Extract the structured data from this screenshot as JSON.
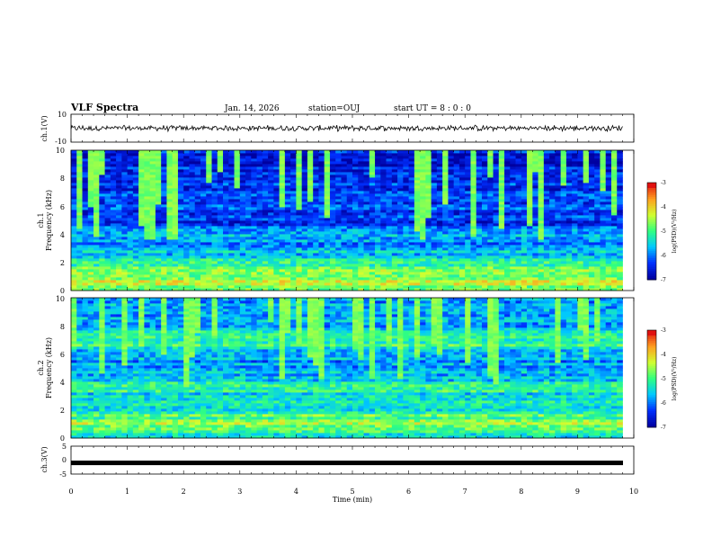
{
  "header": {
    "title": "VLF Spectra",
    "date": "Jan. 14, 2026",
    "station": "station=OUJ",
    "start": "start  UT =   8 : 0  : 0"
  },
  "chart_data": [
    {
      "type": "line",
      "panel": "ch1-waveform",
      "ylabel": "ch.1(V)",
      "ylim": [
        -10,
        10
      ],
      "yticks": [
        "10",
        "-10"
      ],
      "xlim": [
        0,
        10
      ],
      "description_values": {
        "baseline_mean": 0,
        "noise_amplitude": 1.5
      }
    },
    {
      "type": "heatmap",
      "panel": "ch1-spectrogram",
      "ylabel_top": "ch.1",
      "ylabel": "Frequency  (kHz)",
      "ylim": [
        0,
        10
      ],
      "yticks": [
        "0",
        "2",
        "4",
        "6",
        "8",
        "10"
      ],
      "xlim": [
        0,
        10
      ],
      "data_end_min": 9.8,
      "colorbar": {
        "label": "log(PSD)(V²/Hz)",
        "range": [
          -7,
          -3
        ],
        "ticks": [
          "-3",
          "-4",
          "-5",
          "-6",
          "-7"
        ]
      },
      "level_profile_kHz": [
        [
          0,
          -5.2
        ],
        [
          0.5,
          -4.2
        ],
        [
          1.0,
          -4.6
        ],
        [
          1.5,
          -4.4
        ],
        [
          2.0,
          -5.3
        ],
        [
          3.0,
          -5.8
        ],
        [
          4.0,
          -5.9
        ],
        [
          5.0,
          -6.4
        ],
        [
          6.0,
          -6.3
        ],
        [
          7.0,
          -6.4
        ],
        [
          8.0,
          -6.5
        ],
        [
          10.0,
          -6.6
        ]
      ]
    },
    {
      "type": "heatmap",
      "panel": "ch2-spectrogram",
      "ylabel_top": "ch.2",
      "ylabel": "Frequency  (kHz)",
      "ylim": [
        0,
        10
      ],
      "yticks": [
        "0",
        "2",
        "4",
        "6",
        "8",
        "10"
      ],
      "xlim": [
        0,
        10
      ],
      "data_end_min": 9.8,
      "colorbar": {
        "label": "log(PSD)(V²/Hz)",
        "range": [
          -7,
          -3
        ],
        "ticks": [
          "-3",
          "-4",
          "-5",
          "-6",
          "-7"
        ]
      },
      "level_profile_kHz": [
        [
          0,
          -5.6
        ],
        [
          1.0,
          -4.6
        ],
        [
          2.0,
          -5.2
        ],
        [
          3.0,
          -5.6
        ],
        [
          3.5,
          -5.0
        ],
        [
          4.0,
          -5.4
        ],
        [
          5.0,
          -5.9
        ],
        [
          6.0,
          -5.8
        ],
        [
          6.8,
          -5.0
        ],
        [
          8.0,
          -5.7
        ],
        [
          10.0,
          -5.8
        ]
      ]
    },
    {
      "type": "line",
      "panel": "ch3-waveform",
      "ylabel": "ch.3(V)",
      "ylim": [
        -5,
        5
      ],
      "yticks": [
        "5",
        "0",
        "-5"
      ],
      "xlim": [
        0,
        10
      ],
      "description_values": {
        "baseline_mean": -1.0
      }
    }
  ],
  "xaxis": {
    "label": "Time  (min)",
    "ticks": [
      "0",
      "1",
      "2",
      "3",
      "4",
      "5",
      "6",
      "7",
      "8",
      "9",
      "10"
    ]
  },
  "colors": {
    "colormap": [
      "#0000a0",
      "#0030ff",
      "#00c8ff",
      "#30ff80",
      "#d0ff30",
      "#ffa020",
      "#e01010",
      "#f0f0f0"
    ]
  }
}
